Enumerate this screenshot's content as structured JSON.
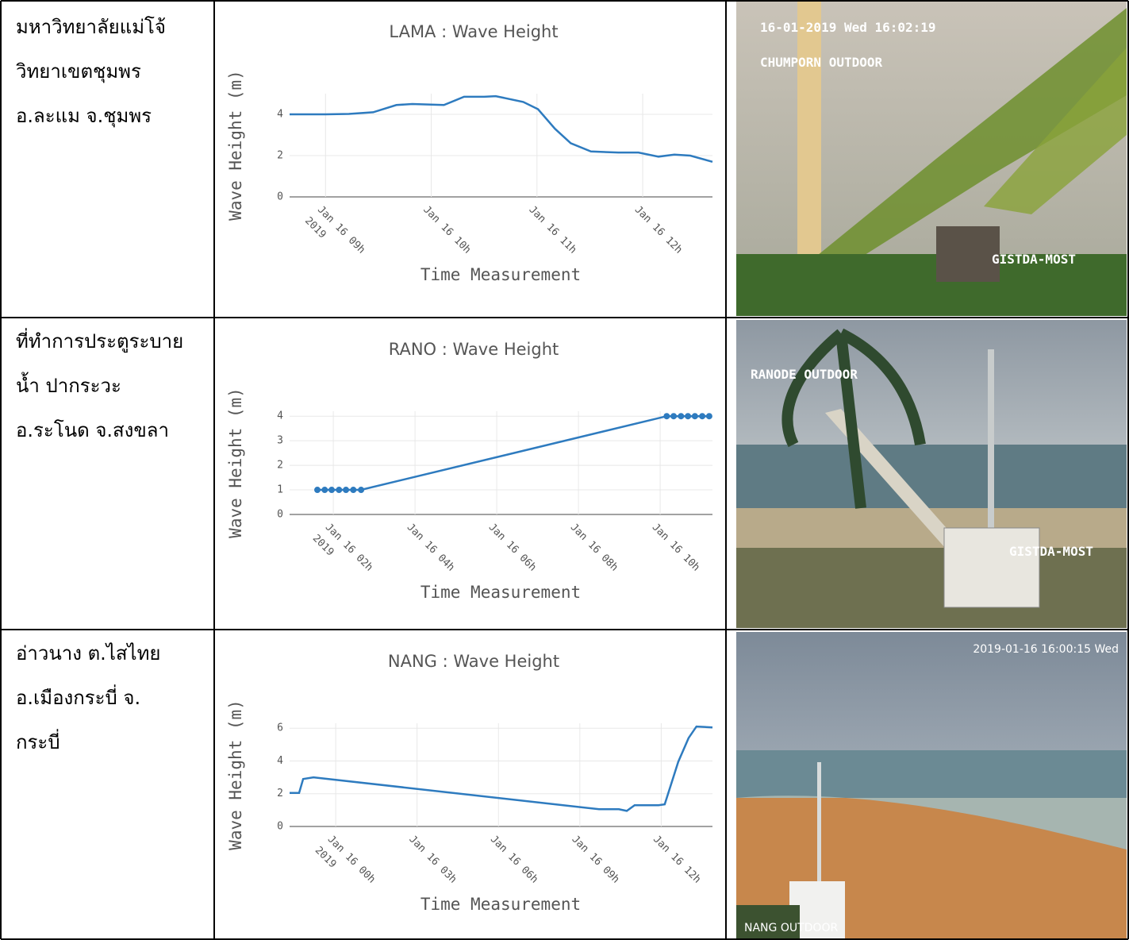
{
  "table": {
    "rows": [
      {
        "location": [
          "มหาวิทยาลัยแม่โจ้",
          "วิทยาเขตชุมพร",
          "อ.ละแม จ.ชุมพร"
        ],
        "camera_overlay": [
          "16-01-2019 Wed 16:02:19",
          "CHUMPORN OUTDOOR",
          "GISTDA-MOST"
        ]
      },
      {
        "location": [
          "ที่ทำการประตูระบาย",
          "น้ำ ปากระวะ",
          "อ.ระโนด จ.สงขลา"
        ],
        "camera_overlay": [
          "RANODE OUTDOOR",
          "GISTDA-MOST"
        ]
      },
      {
        "location": [
          "อ่าวนาง ต.ไสไทย",
          "อ.เมืองกระบี่ จ.",
          "กระบี่"
        ],
        "camera_overlay": [
          "2019-01-16 16:00:15 Wed",
          "NANG OUTDOOR"
        ]
      }
    ]
  },
  "chart_data": [
    {
      "type": "line",
      "mode": "lines",
      "title": "LAMA : Wave Height",
      "x_label": "Time Measurement",
      "y_label": "Wave Height (m)",
      "color": "#2e7bbf",
      "grid": true,
      "x": [
        8.66,
        9.0,
        9.22,
        9.45,
        9.67,
        9.82,
        10.12,
        10.31,
        10.5,
        10.61,
        10.87,
        11.01,
        11.17,
        11.32,
        11.51,
        11.77,
        11.96,
        12.15,
        12.3,
        12.45,
        12.66
      ],
      "values": [
        4.0,
        4.0,
        4.02,
        4.1,
        4.45,
        4.5,
        4.45,
        4.85,
        4.85,
        4.88,
        4.6,
        4.25,
        3.3,
        2.6,
        2.2,
        2.15,
        2.15,
        1.95,
        2.05,
        2.0,
        1.7
      ],
      "xlim": [
        8.66,
        12.66
      ],
      "ylim": [
        0,
        5
      ],
      "xticks": [
        {
          "value": 9,
          "label": "Jan 16 09h",
          "sublabel": "2019"
        },
        {
          "value": 10,
          "label": "Jan 16 10h"
        },
        {
          "value": 11,
          "label": "Jan 16 11h"
        },
        {
          "value": 12,
          "label": "Jan 16 12h"
        }
      ],
      "yticks": [
        0,
        2,
        4
      ]
    },
    {
      "type": "line",
      "mode": "lines+markers",
      "title": "RANO : Wave Height",
      "x_label": "Time Measurement",
      "y_label": "Wave Height (m)",
      "color": "#2e7bbf",
      "grid": true,
      "x": [
        1.61,
        1.79,
        1.96,
        2.14,
        2.31,
        2.49,
        2.68,
        10.16,
        10.33,
        10.51,
        10.68,
        10.85,
        11.03,
        11.2
      ],
      "values": [
        1,
        1,
        1,
        1,
        1,
        1,
        1,
        4,
        4,
        4,
        4,
        4,
        4,
        4
      ],
      "xlim": [
        0.93,
        11.28
      ],
      "ylim": [
        0,
        4.2
      ],
      "xticks": [
        {
          "value": 2,
          "label": "Jan 16 02h",
          "sublabel": "2019"
        },
        {
          "value": 4,
          "label": "Jan 16 04h"
        },
        {
          "value": 6,
          "label": "Jan 16 06h"
        },
        {
          "value": 8,
          "label": "Jan 16 08h"
        },
        {
          "value": 10,
          "label": "Jan 16 10h"
        }
      ],
      "yticks": [
        0,
        1,
        2,
        3,
        4
      ]
    },
    {
      "type": "line",
      "mode": "lines",
      "title": "NANG : Wave Height",
      "x_label": "Time Measurement",
      "y_label": "Wave Height (m)",
      "color": "#2e7bbf",
      "grid": true,
      "x": [
        -1.7,
        -1.35,
        -1.2,
        -0.82,
        9.71,
        10.44,
        10.73,
        11.02,
        11.9,
        12.13,
        12.63,
        13.01,
        13.3,
        13.89
      ],
      "values": [
        2.05,
        2.05,
        2.9,
        3.0,
        1.05,
        1.05,
        0.95,
        1.3,
        1.3,
        1.35,
        3.95,
        5.4,
        6.1,
        6.05
      ],
      "xlim": [
        -1.7,
        13.89
      ],
      "ylim": [
        0,
        6.3
      ],
      "xticks": [
        {
          "value": 0,
          "label": "Jan 16 00h",
          "sublabel": "2019"
        },
        {
          "value": 3,
          "label": "Jan 16 03h"
        },
        {
          "value": 6,
          "label": "Jan 16 06h"
        },
        {
          "value": 9,
          "label": "Jan 16 09h"
        },
        {
          "value": 12,
          "label": "Jan 16 12h"
        }
      ],
      "yticks": [
        0,
        2,
        4,
        6
      ]
    }
  ]
}
